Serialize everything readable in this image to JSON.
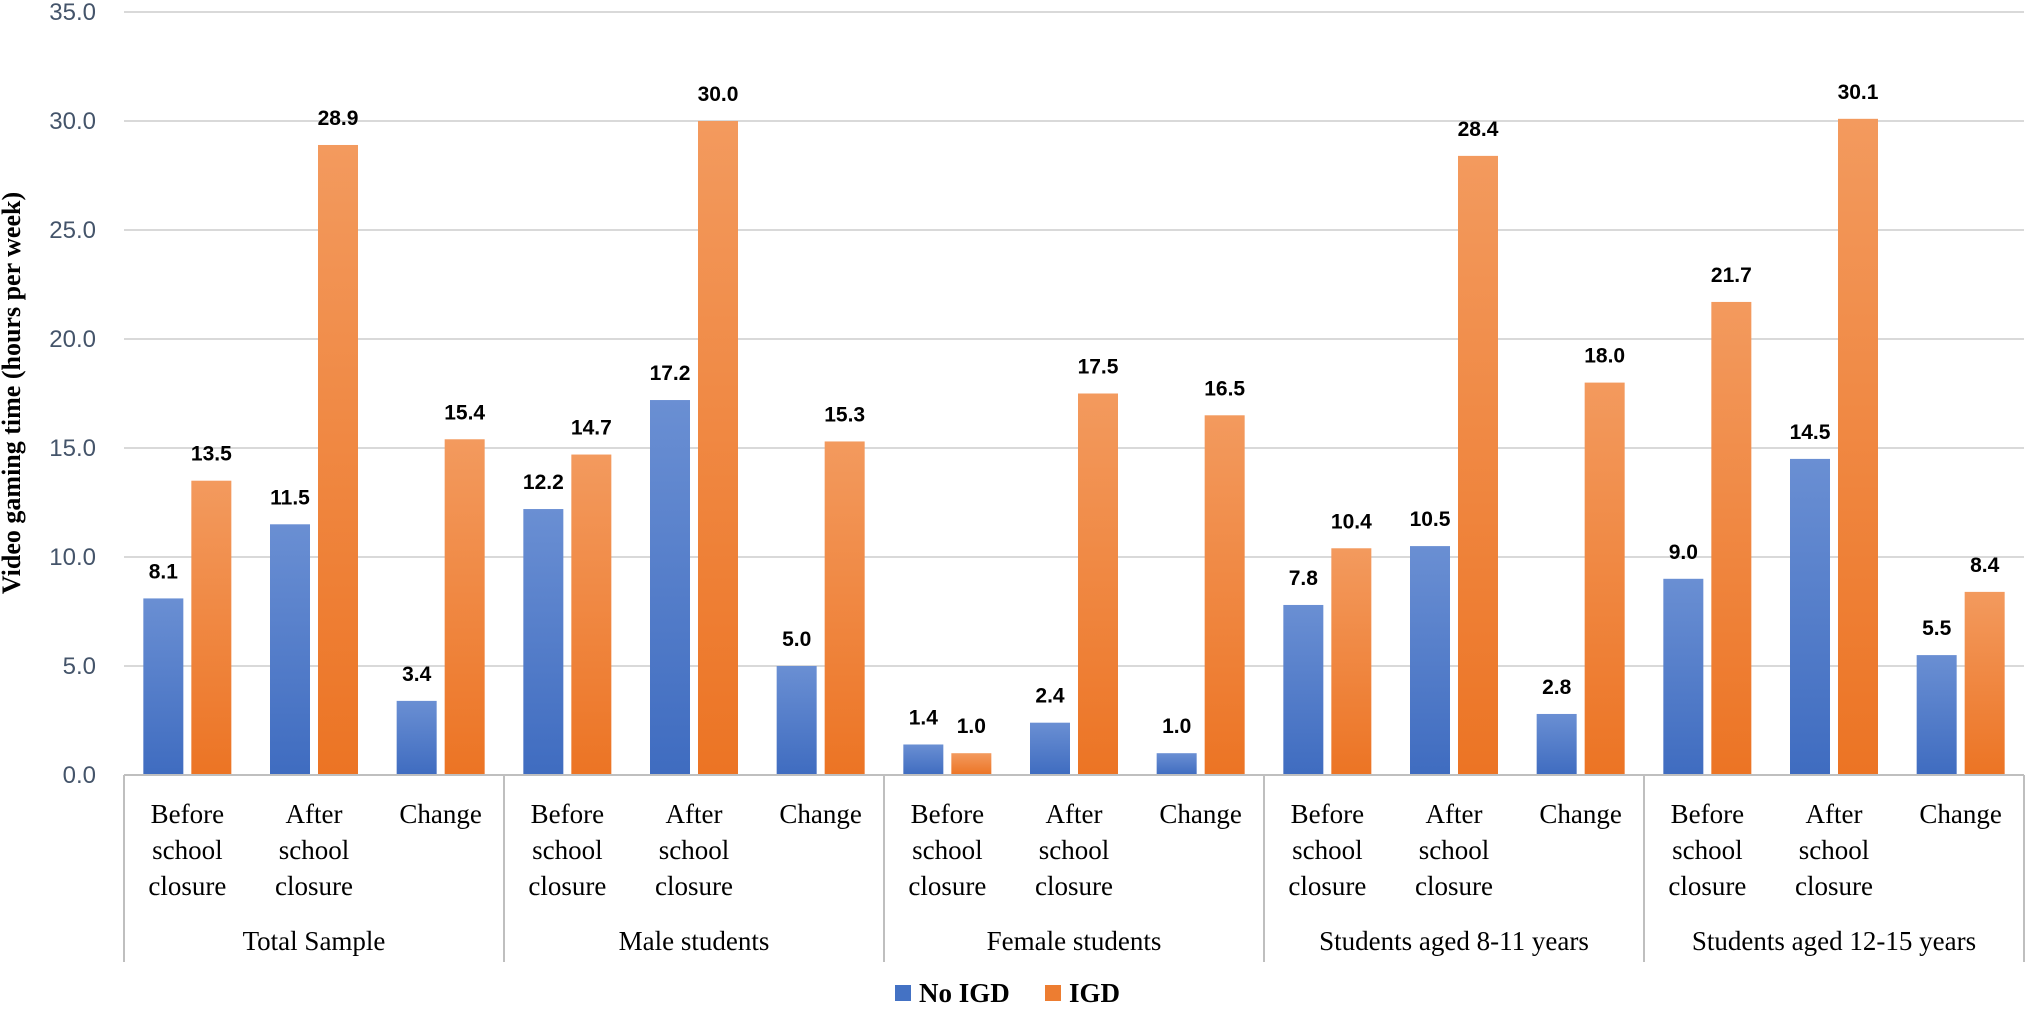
{
  "chart_data": {
    "type": "bar",
    "title": "",
    "ylabel": "Video gaming time (hours per week)",
    "xlabel": "",
    "ylim": [
      0,
      35
    ],
    "ytick_step": 5,
    "ytick_labels": [
      "0.0",
      "5.0",
      "10.0",
      "15.0",
      "20.0",
      "25.0",
      "30.0",
      "35.0"
    ],
    "grid": true,
    "legend_position": "bottom-center",
    "groups": [
      {
        "label": "Total Sample",
        "categories": [
          "Before school closure",
          "After school closure",
          "Change"
        ]
      },
      {
        "label": "Male students",
        "categories": [
          "Before school closure",
          "After school closure",
          "Change"
        ]
      },
      {
        "label": "Female students",
        "categories": [
          "Before school closure",
          "After school closure",
          "Change"
        ]
      },
      {
        "label": "Students aged 8-11 years",
        "categories": [
          "Before school closure",
          "After school closure",
          "Change"
        ]
      },
      {
        "label": "Students aged 12-15 years",
        "categories": [
          "Before school closure",
          "After school closure",
          "Change"
        ]
      }
    ],
    "category_lines": {
      "Before school closure": [
        "Before",
        "school",
        "closure"
      ],
      "After school closure": [
        "After",
        "school",
        "closure"
      ],
      "Change": [
        "Change"
      ]
    },
    "series": [
      {
        "name": "No IGD",
        "color": "#4472c4",
        "values": [
          8.1,
          11.5,
          3.4,
          12.2,
          17.2,
          5.0,
          1.4,
          2.4,
          1.0,
          7.8,
          10.5,
          2.8,
          9.0,
          14.5,
          5.5
        ],
        "labels": [
          "8.1",
          "11.5",
          "3.4",
          "12.2",
          "17.2",
          "5.0",
          "1.4",
          "2.4",
          "1.0",
          "7.8",
          "10.5",
          "2.8",
          "9.0",
          "14.5",
          "5.5"
        ]
      },
      {
        "name": "IGD",
        "color": "#ed7d31",
        "values": [
          13.5,
          28.9,
          15.4,
          14.7,
          30.0,
          15.3,
          1.0,
          17.5,
          16.5,
          10.4,
          28.4,
          18.0,
          21.7,
          30.1,
          8.4
        ],
        "labels": [
          "13.5",
          "28.9",
          "15.4",
          "14.7",
          "30.0",
          "15.3",
          "1.0",
          "17.5",
          "16.5",
          "10.4",
          "28.4",
          "18.0",
          "21.7",
          "30.1",
          "8.4"
        ]
      }
    ]
  }
}
